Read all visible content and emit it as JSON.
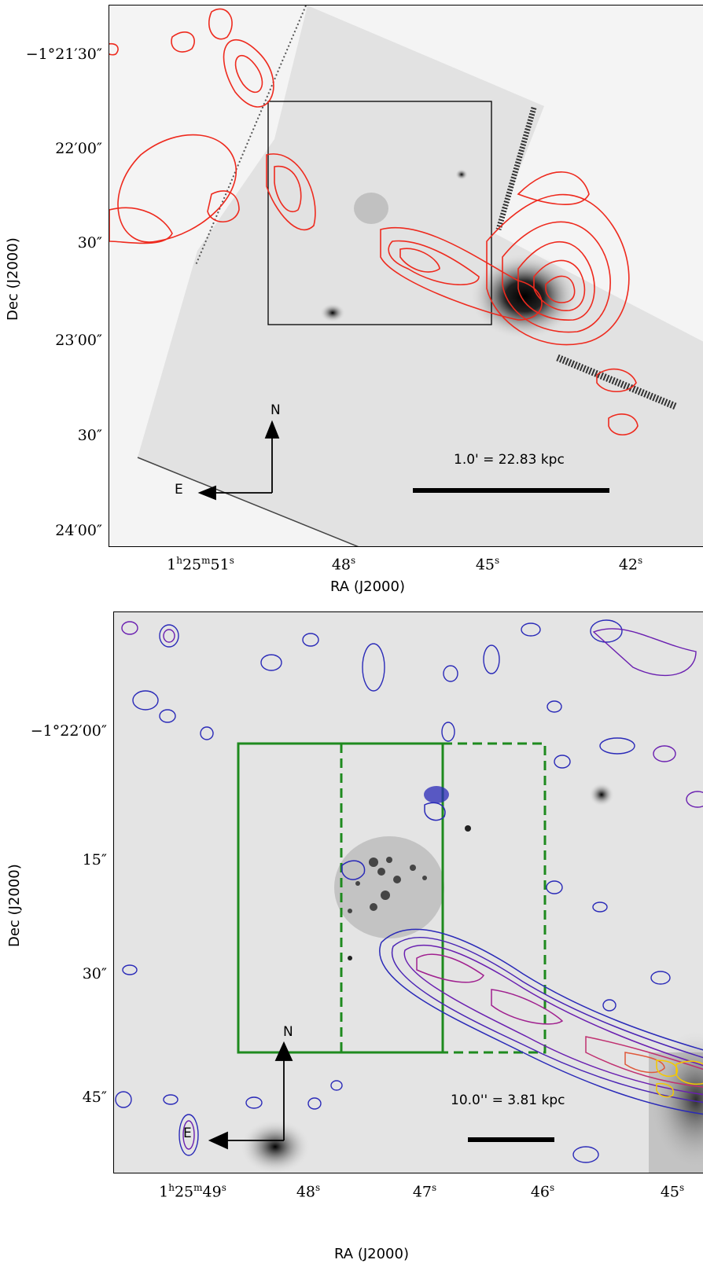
{
  "top_panel": {
    "y_axis_title": "Dec (J2000)",
    "x_axis_title": "RA (J2000)",
    "y_ticks": [
      "−1°21′30″",
      "22′00″",
      "30″",
      "23′00″",
      "30″",
      "24′00″"
    ],
    "x_ticks": [
      "1h25m51s",
      "48s",
      "45s",
      "42s"
    ],
    "scale_bar_label": "1.0' = 22.83 kpc",
    "compass": {
      "north": "N",
      "east": "E"
    },
    "contour_color": "#ee2a1e"
  },
  "bottom_panel": {
    "y_axis_title": "Dec (J2000)",
    "x_axis_title": "RA (J2000)",
    "y_ticks": [
      "−1°22′00″",
      "15″",
      "30″",
      "45″"
    ],
    "x_ticks": [
      "1h25m49s",
      "48s",
      "47s",
      "46s",
      "45s"
    ],
    "scale_bar_label": "10.0'' = 3.81 kpc",
    "compass": {
      "north": "N",
      "east": "E"
    },
    "box_color": "#1e8a1e",
    "contour_colors": [
      "#2a2ab8",
      "#6a1fb0",
      "#a0208f",
      "#e0583a",
      "#f5c800"
    ]
  }
}
